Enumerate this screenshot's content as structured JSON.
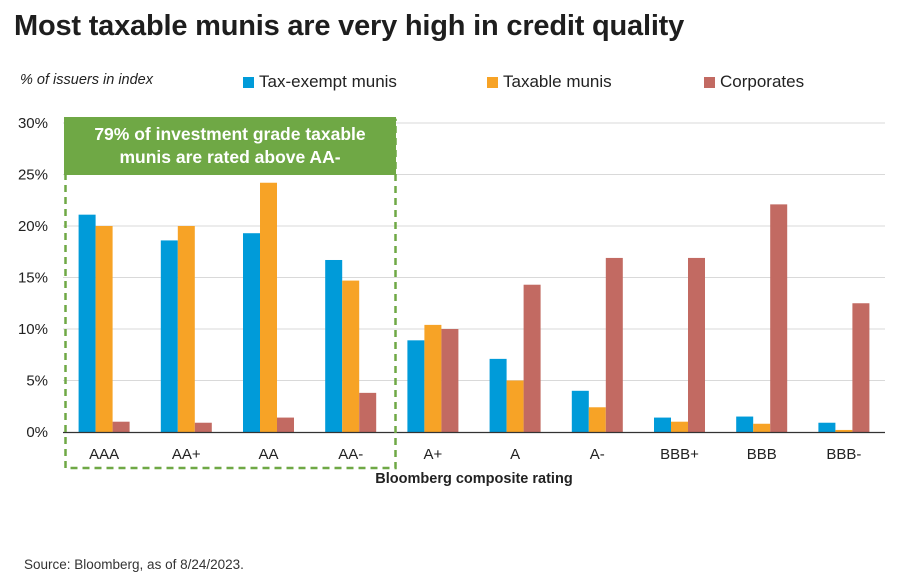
{
  "title": "Most taxable munis are very high in credit quality",
  "source": "Source: Bloomberg, as of 8/24/2023.",
  "callout": "79% of investment grade taxable munis are rated above AA-",
  "colors": {
    "tax_exempt": "#009bd9",
    "taxable": "#f7a326",
    "corporates": "#c26a62",
    "callout": "#6fa845",
    "grid": "#d9d9d9"
  },
  "chart_data": {
    "type": "bar",
    "title": "Most taxable munis are very high in credit quality",
    "xlabel": "Bloomberg composite rating",
    "ylabel": "% of issuers in index",
    "ylim": [
      0,
      30
    ],
    "yticks": [
      "0%",
      "5%",
      "10%",
      "15%",
      "20%",
      "25%",
      "30%"
    ],
    "legend_position": "top",
    "grid": true,
    "categories": [
      "AAA",
      "AA+",
      "AA",
      "AA-",
      "A+",
      "A",
      "A-",
      "BBB+",
      "BBB",
      "BBB-"
    ],
    "series": [
      {
        "name": "Tax-exempt munis",
        "values": [
          21.1,
          18.6,
          19.3,
          16.7,
          8.9,
          7.1,
          4.0,
          1.4,
          1.5,
          0.9
        ]
      },
      {
        "name": "Taxable munis",
        "values": [
          20.0,
          20.0,
          24.2,
          14.7,
          10.4,
          5.0,
          2.4,
          1.0,
          0.8,
          0.2
        ]
      },
      {
        "name": "Corporates",
        "values": [
          1.0,
          0.9,
          1.4,
          3.8,
          10.0,
          14.3,
          16.9,
          16.9,
          22.1,
          12.5
        ]
      }
    ]
  }
}
